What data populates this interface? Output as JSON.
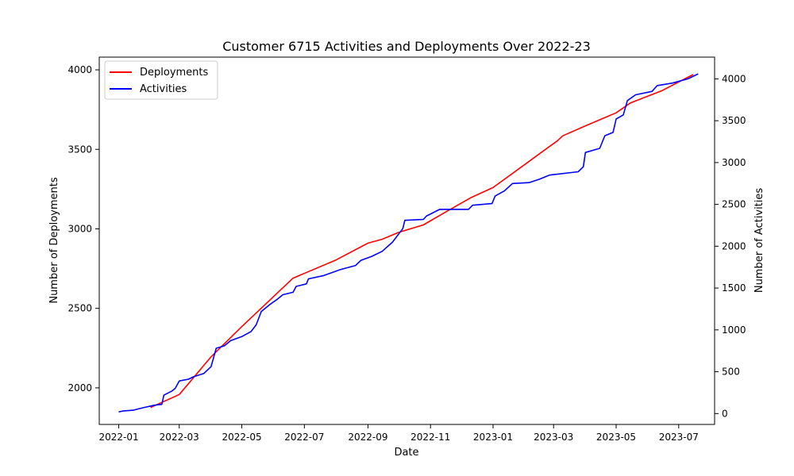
{
  "chart_data": {
    "type": "line",
    "title": "Customer 6715 Activities and Deployments Over 2022-23",
    "xlabel": "Date",
    "ylabel_left": "Number of Deployments",
    "ylabel_right": "Number of Activities",
    "x_ticks": [
      "2022-01",
      "2022-03",
      "2022-05",
      "2022-07",
      "2022-09",
      "2022-11",
      "2023-01",
      "2023-03",
      "2023-05",
      "2023-07"
    ],
    "x_range": [
      "2021-12-13",
      "2023-08-05"
    ],
    "y_left_ticks": [
      2000,
      2500,
      3000,
      3500,
      4000
    ],
    "y_left_range": [
      1770,
      4080
    ],
    "y_right_ticks": [
      0,
      500,
      1000,
      1500,
      2000,
      2500,
      3000,
      3500,
      4000
    ],
    "y_right_range": [
      -130,
      4260
    ],
    "legend_position": "upper-left",
    "grid": false,
    "series": [
      {
        "name": "Deployments",
        "axis": "left",
        "color": "#ff0000",
        "points": [
          [
            "2022-02-01",
            1877
          ],
          [
            "2022-03-01",
            1958
          ],
          [
            "2022-04-01",
            2195
          ],
          [
            "2022-05-01",
            2385
          ],
          [
            "2022-06-20",
            2690
          ],
          [
            "2022-08-01",
            2805
          ],
          [
            "2022-09-01",
            2910
          ],
          [
            "2022-09-15",
            2935
          ],
          [
            "2022-10-01",
            2978
          ],
          [
            "2022-10-25",
            3025
          ],
          [
            "2022-11-15",
            3103
          ],
          [
            "2022-12-10",
            3195
          ],
          [
            "2023-01-01",
            3260
          ],
          [
            "2023-02-01",
            3405
          ],
          [
            "2023-02-20",
            3495
          ],
          [
            "2023-03-05",
            3555
          ],
          [
            "2023-03-10",
            3585
          ],
          [
            "2023-04-01",
            3648
          ],
          [
            "2023-05-01",
            3730
          ],
          [
            "2023-05-15",
            3792
          ],
          [
            "2023-06-15",
            3870
          ],
          [
            "2023-07-15",
            3970
          ]
        ]
      },
      {
        "name": "Activities",
        "axis": "right",
        "color": "#0000ff",
        "points": [
          [
            "2022-01-01",
            20
          ],
          [
            "2022-01-05",
            30
          ],
          [
            "2022-01-15",
            40
          ],
          [
            "2022-01-25",
            70
          ],
          [
            "2022-02-05",
            100
          ],
          [
            "2022-02-12",
            110
          ],
          [
            "2022-02-14",
            220
          ],
          [
            "2022-02-22",
            270
          ],
          [
            "2022-02-25",
            300
          ],
          [
            "2022-03-01",
            390
          ],
          [
            "2022-03-10",
            410
          ],
          [
            "2022-03-15",
            440
          ],
          [
            "2022-03-25",
            480
          ],
          [
            "2022-04-01",
            560
          ],
          [
            "2022-04-06",
            780
          ],
          [
            "2022-04-14",
            810
          ],
          [
            "2022-04-20",
            870
          ],
          [
            "2022-05-01",
            920
          ],
          [
            "2022-05-10",
            980
          ],
          [
            "2022-05-15",
            1060
          ],
          [
            "2022-05-20",
            1220
          ],
          [
            "2022-05-28",
            1300
          ],
          [
            "2022-06-05",
            1370
          ],
          [
            "2022-06-10",
            1420
          ],
          [
            "2022-06-20",
            1450
          ],
          [
            "2022-06-23",
            1520
          ],
          [
            "2022-07-03",
            1550
          ],
          [
            "2022-07-05",
            1610
          ],
          [
            "2022-07-20",
            1650
          ],
          [
            "2022-08-05",
            1720
          ],
          [
            "2022-08-20",
            1770
          ],
          [
            "2022-08-25",
            1830
          ],
          [
            "2022-09-05",
            1880
          ],
          [
            "2022-09-15",
            1940
          ],
          [
            "2022-09-25",
            2050
          ],
          [
            "2022-10-05",
            2210
          ],
          [
            "2022-10-07",
            2310
          ],
          [
            "2022-10-25",
            2320
          ],
          [
            "2022-10-28",
            2360
          ],
          [
            "2022-11-10",
            2440
          ],
          [
            "2022-12-08",
            2440
          ],
          [
            "2022-12-12",
            2490
          ],
          [
            "2022-12-31",
            2510
          ],
          [
            "2023-01-03",
            2600
          ],
          [
            "2023-01-12",
            2660
          ],
          [
            "2023-01-20",
            2750
          ],
          [
            "2023-02-05",
            2760
          ],
          [
            "2023-02-15",
            2800
          ],
          [
            "2023-02-25",
            2850
          ],
          [
            "2023-03-25",
            2890
          ],
          [
            "2023-03-30",
            2950
          ],
          [
            "2023-04-01",
            3120
          ],
          [
            "2023-04-15",
            3170
          ],
          [
            "2023-04-20",
            3320
          ],
          [
            "2023-04-28",
            3360
          ],
          [
            "2023-05-01",
            3520
          ],
          [
            "2023-05-08",
            3570
          ],
          [
            "2023-05-12",
            3740
          ],
          [
            "2023-05-20",
            3810
          ],
          [
            "2023-06-05",
            3850
          ],
          [
            "2023-06-10",
            3920
          ],
          [
            "2023-06-25",
            3950
          ],
          [
            "2023-07-10",
            4000
          ],
          [
            "2023-07-20",
            4060
          ]
        ]
      }
    ]
  }
}
